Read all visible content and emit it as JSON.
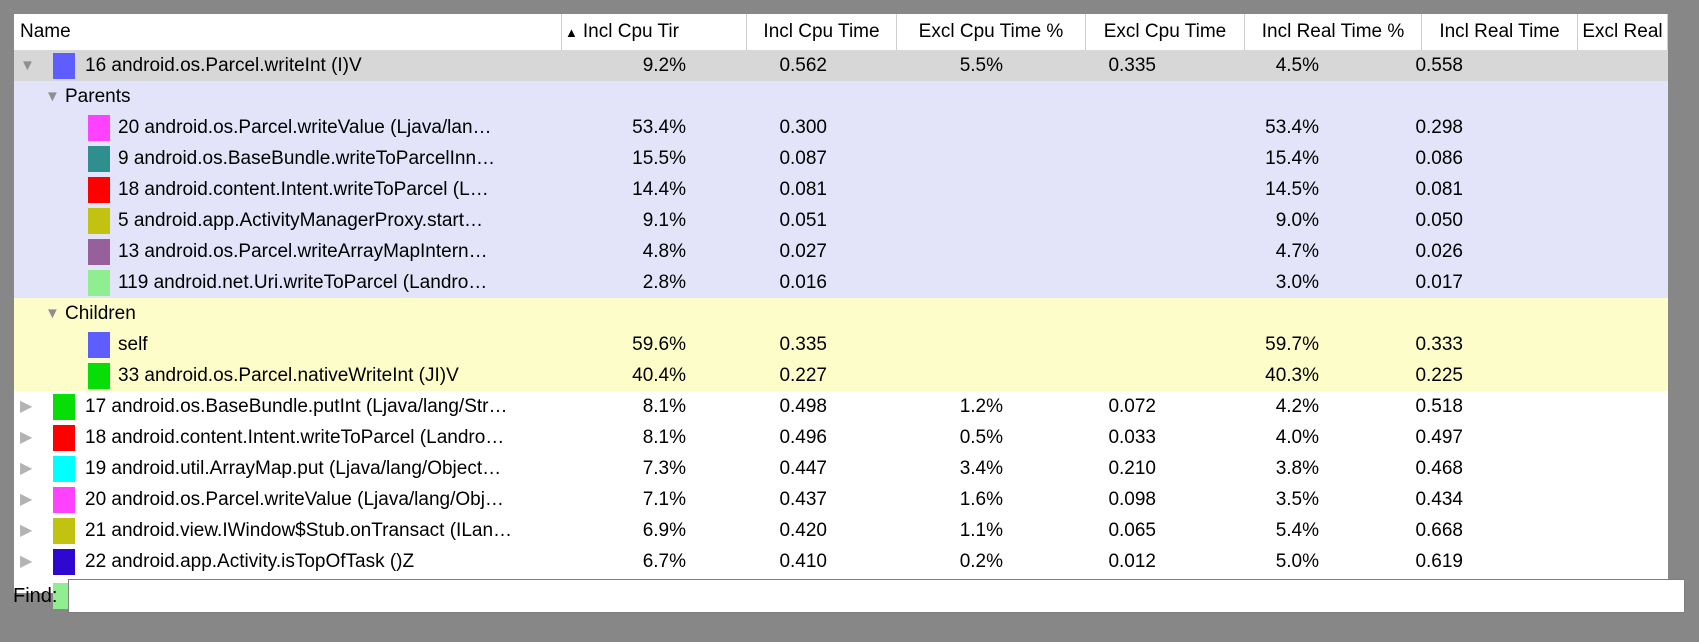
{
  "table": {
    "columns": [
      {
        "label": "Name",
        "sorted": ""
      },
      {
        "label": "Incl Cpu Tir",
        "sorted": "ascending"
      },
      {
        "label": "Incl Cpu Time",
        "sorted": ""
      },
      {
        "label": "Excl Cpu Time %",
        "sorted": ""
      },
      {
        "label": "Excl Cpu Time",
        "sorted": ""
      },
      {
        "label": "Incl Real Time %",
        "sorted": ""
      },
      {
        "label": "Incl Real Time",
        "sorted": ""
      },
      {
        "label": "Excl Real",
        "sorted": ""
      }
    ],
    "rows": [
      {
        "kind": "function",
        "bg": "selected",
        "expander": "expanded",
        "marker": "#5e5eff",
        "name": "16 android.os.Parcel.writeInt (I)V",
        "values": [
          "9.2%",
          "0.562",
          "5.5%",
          "0.335",
          "4.5%",
          "0.558"
        ]
      },
      {
        "kind": "section",
        "bg": "parents",
        "name": "Parents",
        "values": []
      },
      {
        "kind": "child",
        "bg": "parents",
        "marker": "#ff42ff",
        "name": "20 android.os.Parcel.writeValue (Ljava/lan…",
        "values": [
          "53.4%",
          "0.300",
          "",
          "",
          "53.4%",
          "0.298"
        ]
      },
      {
        "kind": "child",
        "bg": "parents",
        "marker": "#2f8f8f",
        "name": "9 android.os.BaseBundle.writeToParcelInn…",
        "values": [
          "15.5%",
          "0.087",
          "",
          "",
          "15.4%",
          "0.086"
        ]
      },
      {
        "kind": "child",
        "bg": "parents",
        "marker": "#ff0000",
        "name": "18 android.content.Intent.writeToParcel (L…",
        "values": [
          "14.4%",
          "0.081",
          "",
          "",
          "14.5%",
          "0.081"
        ]
      },
      {
        "kind": "child",
        "bg": "parents",
        "marker": "#c2c211",
        "name": "5 android.app.ActivityManagerProxy.start…",
        "values": [
          "9.1%",
          "0.051",
          "",
          "",
          "9.0%",
          "0.050"
        ]
      },
      {
        "kind": "child",
        "bg": "parents",
        "marker": "#96609b",
        "name": "13 android.os.Parcel.writeArrayMapIntern…",
        "values": [
          "4.8%",
          "0.027",
          "",
          "",
          "4.7%",
          "0.026"
        ]
      },
      {
        "kind": "child",
        "bg": "parents",
        "marker": "#8fee8f",
        "name": "119 android.net.Uri.writeToParcel (Landro…",
        "values": [
          "2.8%",
          "0.016",
          "",
          "",
          "3.0%",
          "0.017"
        ]
      },
      {
        "kind": "section",
        "bg": "children",
        "name": "Children",
        "values": []
      },
      {
        "kind": "child",
        "bg": "children",
        "marker": "#5e5eff",
        "name": "self",
        "values": [
          "59.6%",
          "0.335",
          "",
          "",
          "59.7%",
          "0.333"
        ]
      },
      {
        "kind": "child",
        "bg": "children",
        "marker": "#07dd07",
        "name": "33 android.os.Parcel.nativeWriteInt (JI)V",
        "values": [
          "40.4%",
          "0.227",
          "",
          "",
          "40.3%",
          "0.225"
        ]
      },
      {
        "kind": "function",
        "bg": "white",
        "expander": "collapsed",
        "marker": "#07dd07",
        "name": "17 android.os.BaseBundle.putInt (Ljava/lang/Str…",
        "values": [
          "8.1%",
          "0.498",
          "1.2%",
          "0.072",
          "4.2%",
          "0.518"
        ]
      },
      {
        "kind": "function",
        "bg": "white",
        "expander": "collapsed",
        "marker": "#ff0000",
        "name": "18 android.content.Intent.writeToParcel (Landro…",
        "values": [
          "8.1%",
          "0.496",
          "0.5%",
          "0.033",
          "4.0%",
          "0.497"
        ]
      },
      {
        "kind": "function",
        "bg": "white",
        "expander": "collapsed",
        "marker": "#00ffff",
        "name": "19 android.util.ArrayMap.put (Ljava/lang/Object…",
        "values": [
          "7.3%",
          "0.447",
          "3.4%",
          "0.210",
          "3.8%",
          "0.468"
        ]
      },
      {
        "kind": "function",
        "bg": "white",
        "expander": "collapsed",
        "marker": "#ff42ff",
        "name": "20 android.os.Parcel.writeValue (Ljava/lang/Obj…",
        "values": [
          "7.1%",
          "0.437",
          "1.6%",
          "0.098",
          "3.5%",
          "0.434"
        ]
      },
      {
        "kind": "function",
        "bg": "white",
        "expander": "collapsed",
        "marker": "#c2c211",
        "name": "21 android.view.IWindow$Stub.onTransact (ILan…",
        "values": [
          "6.9%",
          "0.420",
          "1.1%",
          "0.065",
          "5.4%",
          "0.668"
        ]
      },
      {
        "kind": "function",
        "bg": "white",
        "expander": "collapsed",
        "marker": "#2e08d0",
        "name": "22 android.app.Activity.isTopOfTask ()Z",
        "values": [
          "6.7%",
          "0.410",
          "0.2%",
          "0.012",
          "5.0%",
          "0.619"
        ]
      },
      {
        "kind": "partial",
        "bg": "white",
        "marker": "#8fee8f",
        "name": "",
        "values": []
      }
    ]
  },
  "icons": {
    "sort_ascending": "▲",
    "expanded": "▼",
    "collapsed": "▶"
  },
  "colors": {
    "selected_row": "#d7d7d7",
    "parents_section": "#e3e3f9",
    "children_section": "#fdfdc9",
    "window_background": "#878787"
  },
  "find": {
    "label": "Find:",
    "value": ""
  }
}
